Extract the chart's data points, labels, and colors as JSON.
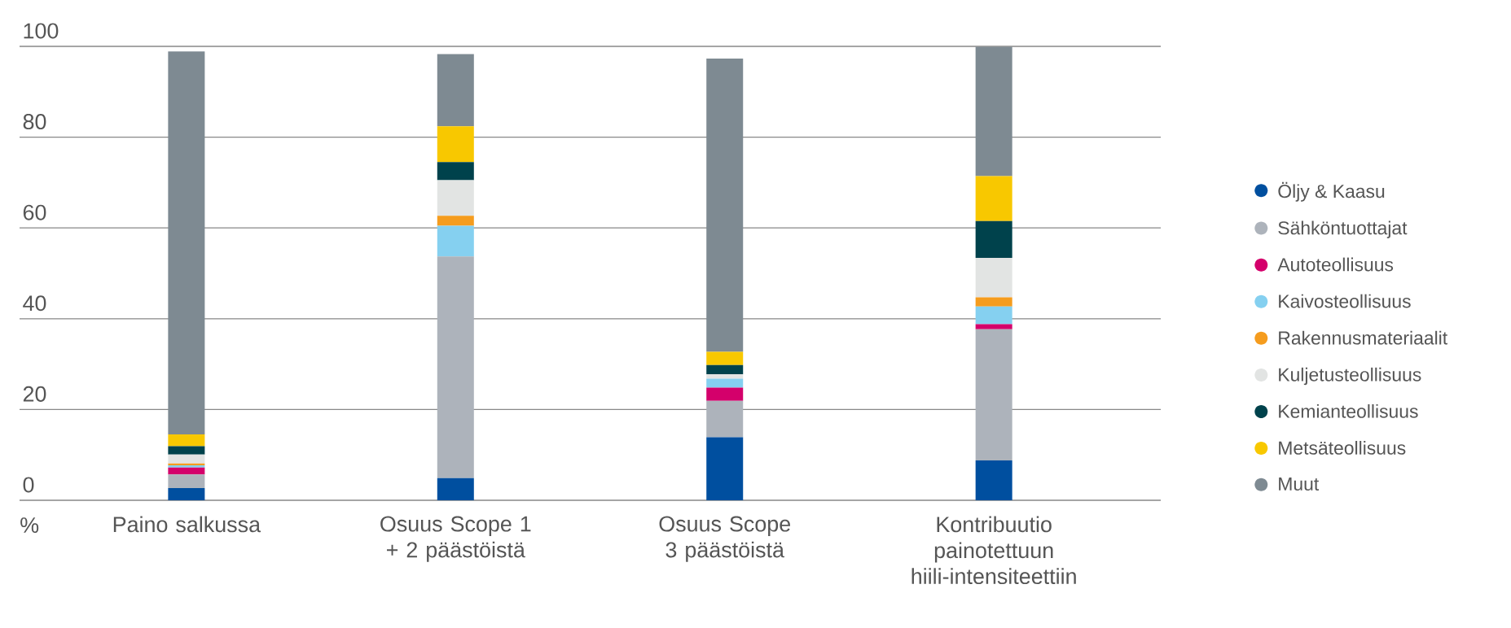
{
  "chart_data": {
    "type": "bar",
    "stacked": true,
    "annotations": [
      "%"
    ],
    "categories": [
      "Paino salkussa",
      "Osuus Scope 1 + 2 päästöistä",
      "Osuus Scope 3 päästöistä",
      "Kontribuutio painotettuun hiili-intensiteettiin"
    ],
    "ylim": [
      0,
      100
    ],
    "yticks": [
      0,
      20,
      40,
      60,
      80,
      100
    ],
    "grid": "y",
    "legend": "right",
    "series": [
      {
        "name": "Öljy & Kaasu",
        "color": "#004f9f",
        "values": [
          2.7,
          4.9,
          13.9,
          8.8
        ]
      },
      {
        "name": "Sähköntuottajat",
        "color": "#adb3bb",
        "values": [
          3.0,
          48.8,
          8.0,
          28.9
        ]
      },
      {
        "name": "Autoteollisuus",
        "color": "#d4006b",
        "values": [
          1.5,
          0,
          2.9,
          1.1
        ]
      },
      {
        "name": "Kaivosteollisuus",
        "color": "#85d0f0",
        "values": [
          0.5,
          6.8,
          2.0,
          3.9
        ]
      },
      {
        "name": "Rakennusmateriaalit",
        "color": "#f59c1e",
        "values": [
          0.4,
          2.2,
          0,
          2.0
        ]
      },
      {
        "name": "Kuljetusteollisuus",
        "color": "#e2e4e3",
        "values": [
          2.0,
          7.8,
          1.0,
          8.7
        ]
      },
      {
        "name": "Kemianteollisuus",
        "color": "#00424c",
        "values": [
          1.8,
          4.0,
          2.0,
          8.1
        ]
      },
      {
        "name": "Metsäteollisuus",
        "color": "#f8c800",
        "values": [
          2.6,
          7.9,
          2.9,
          9.9
        ]
      },
      {
        "name": "Muut",
        "color": "#7e8a92",
        "values": [
          84.4,
          15.9,
          64.6,
          28.5
        ]
      }
    ]
  }
}
